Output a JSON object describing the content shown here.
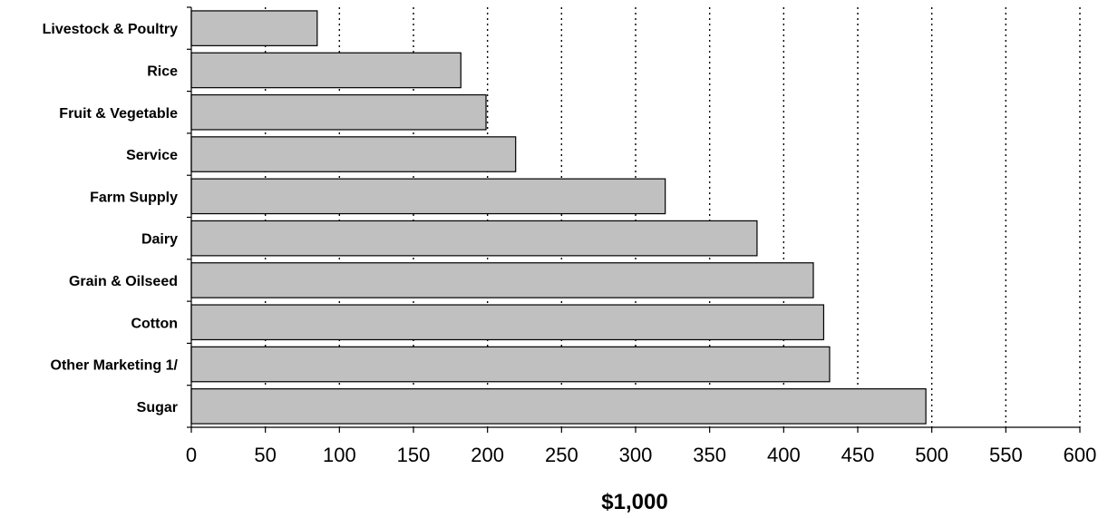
{
  "chart_data": {
    "type": "bar",
    "orientation": "horizontal",
    "categories": [
      "Livestock & Poultry",
      "Rice",
      "Fruit & Vegetable",
      "Service",
      "Farm Supply",
      "Dairy",
      "Grain & Oilseed",
      "Cotton",
      "Other Marketing 1/",
      "Sugar"
    ],
    "values": [
      85,
      182,
      199,
      219,
      320,
      382,
      420,
      427,
      431,
      496
    ],
    "title": "",
    "xlabel": "$1,000",
    "ylabel": "",
    "xlim": [
      0,
      600
    ],
    "xticks": [
      0,
      50,
      100,
      150,
      200,
      250,
      300,
      350,
      400,
      450,
      500,
      550,
      600
    ],
    "grid": "vertical dotted",
    "legend": "none",
    "colors": {
      "bar_fill": "#c0c0c0",
      "bar_stroke": "#000000",
      "grid": "#000000",
      "background": "#ffffff"
    }
  }
}
